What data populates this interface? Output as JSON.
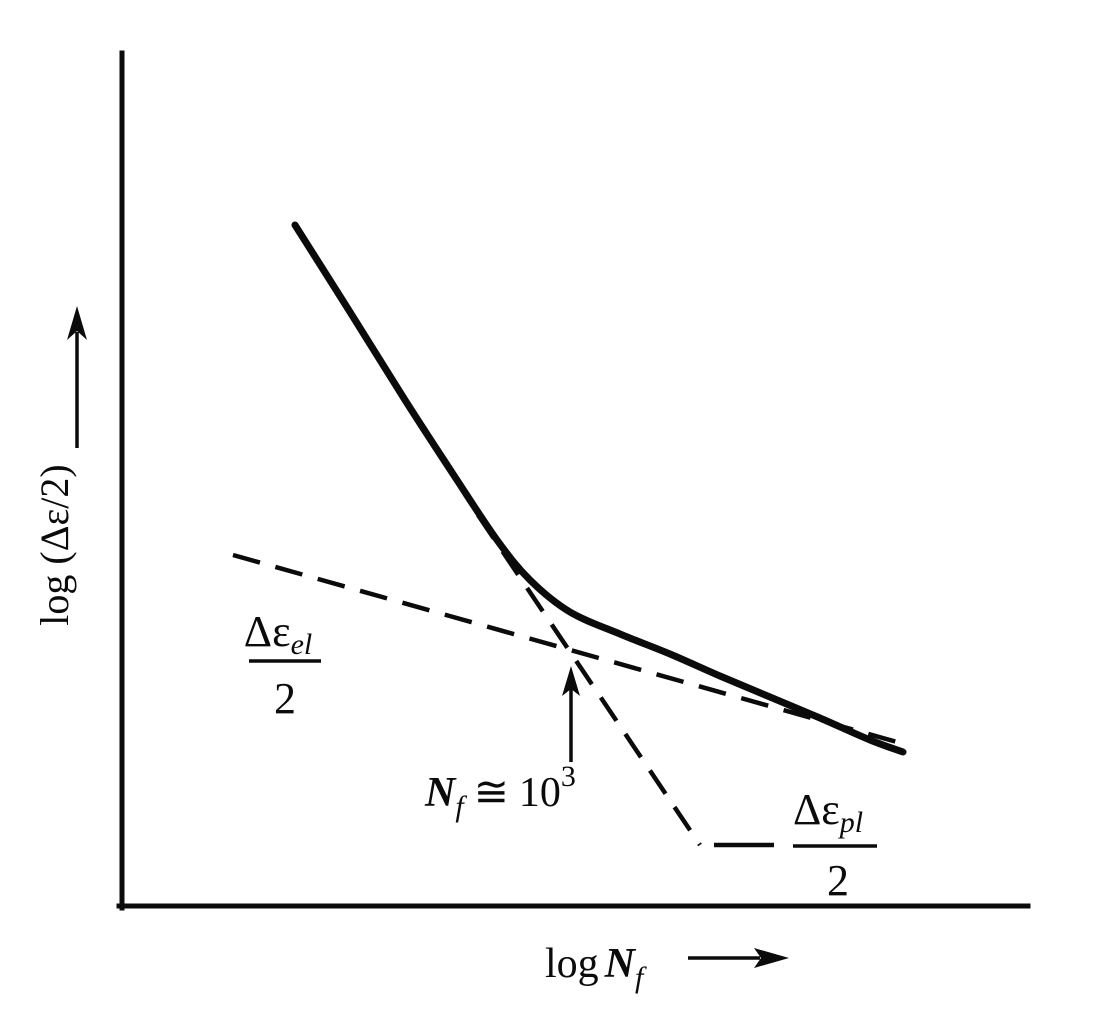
{
  "style": {
    "ink": "#0b0b0b",
    "background": "#ffffff"
  },
  "labels": {
    "y_axis": {
      "text": "log (Δε/2)"
    },
    "x_axis": {
      "prefix": "log",
      "symbol": "N",
      "sub": "f"
    },
    "elastic_fraction": {
      "num": "Δε",
      "num_sub": "el",
      "den": "2"
    },
    "plastic_fraction": {
      "num": "Δε",
      "num_sub": "pl",
      "den": "2"
    },
    "transition": {
      "symbol": "N",
      "sub": "f",
      "relation": "≅",
      "base": "10",
      "exp": "3"
    }
  },
  "chart_data": {
    "type": "line",
    "title": "",
    "xlabel": "log N_f",
    "ylabel": "log (Δε/2)",
    "x_scale": "log (schematic, no tick values shown)",
    "y_scale": "log (schematic, no tick values shown)",
    "grid": false,
    "legend": "none (curves labeled inline with fractions)",
    "series": [
      {
        "name": "total strain amplitude Δε/2",
        "style": "solid thick curve"
      },
      {
        "name": "elastic strain amplitude Δε_el/2",
        "style": "dashed shallow line"
      },
      {
        "name": "plastic strain amplitude Δε_pl/2",
        "style": "dashed steep line"
      }
    ],
    "annotations": [
      {
        "text": "N_f ≅ 10³",
        "type": "vertical arrow pointing up at intersection of the two dashed asymptotes"
      },
      {
        "text": "Δε_el/2",
        "type": "fraction label under elastic dashed line"
      },
      {
        "text": "Δε_pl/2",
        "type": "fraction label at end of plastic dashed line"
      }
    ]
  },
  "geometry": {
    "y_axis": [
      [
        122,
        53
      ],
      [
        122,
        908
      ]
    ],
    "x_axis": [
      [
        119,
        906
      ],
      [
        1028,
        906
      ]
    ],
    "total_curve": [
      [
        295,
        225
      ],
      [
        350,
        312
      ],
      [
        405,
        400
      ],
      [
        455,
        477
      ],
      [
        497,
        540
      ],
      [
        530,
        580
      ],
      [
        570,
        612
      ],
      [
        620,
        634
      ],
      [
        670,
        654
      ],
      [
        720,
        676
      ],
      [
        770,
        697
      ],
      [
        820,
        718
      ],
      [
        870,
        740
      ],
      [
        903,
        752
      ]
    ],
    "elastic_line": [
      [
        233,
        555
      ],
      [
        897,
        742
      ]
    ],
    "plastic_line": [
      [
        478,
        515
      ],
      [
        700,
        845
      ]
    ],
    "plastic_leader": [
      [
        714,
        845
      ],
      [
        786,
        845
      ]
    ],
    "y_arrow_shaft": [
      [
        77,
        448
      ],
      [
        77,
        332
      ]
    ],
    "y_arrow_head": [
      [
        77,
        306
      ],
      [
        67,
        340
      ],
      [
        77,
        331
      ],
      [
        87,
        340
      ]
    ],
    "x_arrow_shaft": [
      [
        688,
        958
      ],
      [
        760,
        958
      ]
    ],
    "x_arrow_head": [
      [
        789,
        958
      ],
      [
        754,
        948
      ],
      [
        761,
        958
      ],
      [
        754,
        968
      ]
    ],
    "transition_arrow_shaft": [
      [
        571,
        762
      ],
      [
        571,
        686
      ]
    ],
    "transition_arrow_head": [
      [
        571,
        666
      ],
      [
        562,
        696
      ],
      [
        571,
        689
      ],
      [
        580,
        696
      ]
    ],
    "elastic_frac_bar": [
      [
        249,
        661
      ],
      [
        321,
        661
      ]
    ],
    "plastic_frac_bar": [
      [
        793,
        846
      ],
      [
        877,
        846
      ]
    ]
  }
}
